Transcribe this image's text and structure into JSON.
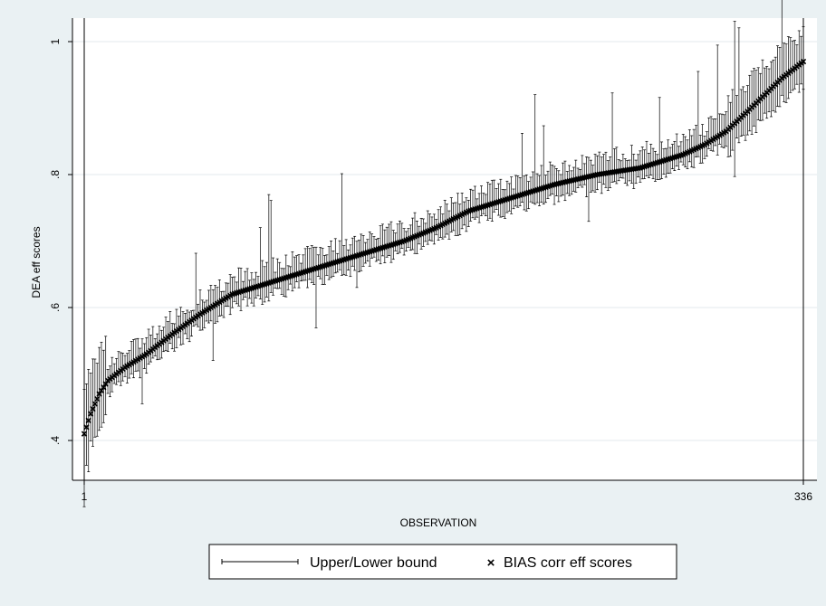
{
  "chart_data": {
    "type": "scatter",
    "title": "",
    "xlabel": "OBSERVATION",
    "ylabel": "DEA eff scores",
    "x_ticks": [
      1,
      336
    ],
    "y_ticks": [
      0.4,
      0.6,
      0.8,
      1.0
    ],
    "y_tick_labels": [
      ".4",
      ".6",
      ".8",
      "1"
    ],
    "xlim": [
      1,
      336
    ],
    "ylim": [
      0.38,
      1.0
    ],
    "grid": "horizontal",
    "vertical_reference_lines_at_x": [
      1,
      336
    ],
    "legend_position": "bottom-center",
    "series": [
      {
        "name": "Upper/Lower bound",
        "kind": "errorbar",
        "color": "#000000"
      },
      {
        "name": "BIAS corr eff scores",
        "kind": "marker",
        "marker": "x",
        "color": "#000000"
      }
    ],
    "curve_profile_x": [
      1,
      4,
      8,
      12,
      20,
      30,
      42,
      55,
      70,
      90,
      110,
      130,
      150,
      165,
      180,
      200,
      220,
      240,
      260,
      280,
      290,
      300,
      310,
      318,
      326,
      336
    ],
    "curve_profile_y": [
      0.41,
      0.44,
      0.47,
      0.49,
      0.51,
      0.53,
      0.56,
      0.59,
      0.62,
      0.64,
      0.66,
      0.68,
      0.7,
      0.72,
      0.745,
      0.765,
      0.785,
      0.8,
      0.81,
      0.83,
      0.845,
      0.865,
      0.895,
      0.92,
      0.945,
      0.97
    ],
    "n_points": 336
  }
}
